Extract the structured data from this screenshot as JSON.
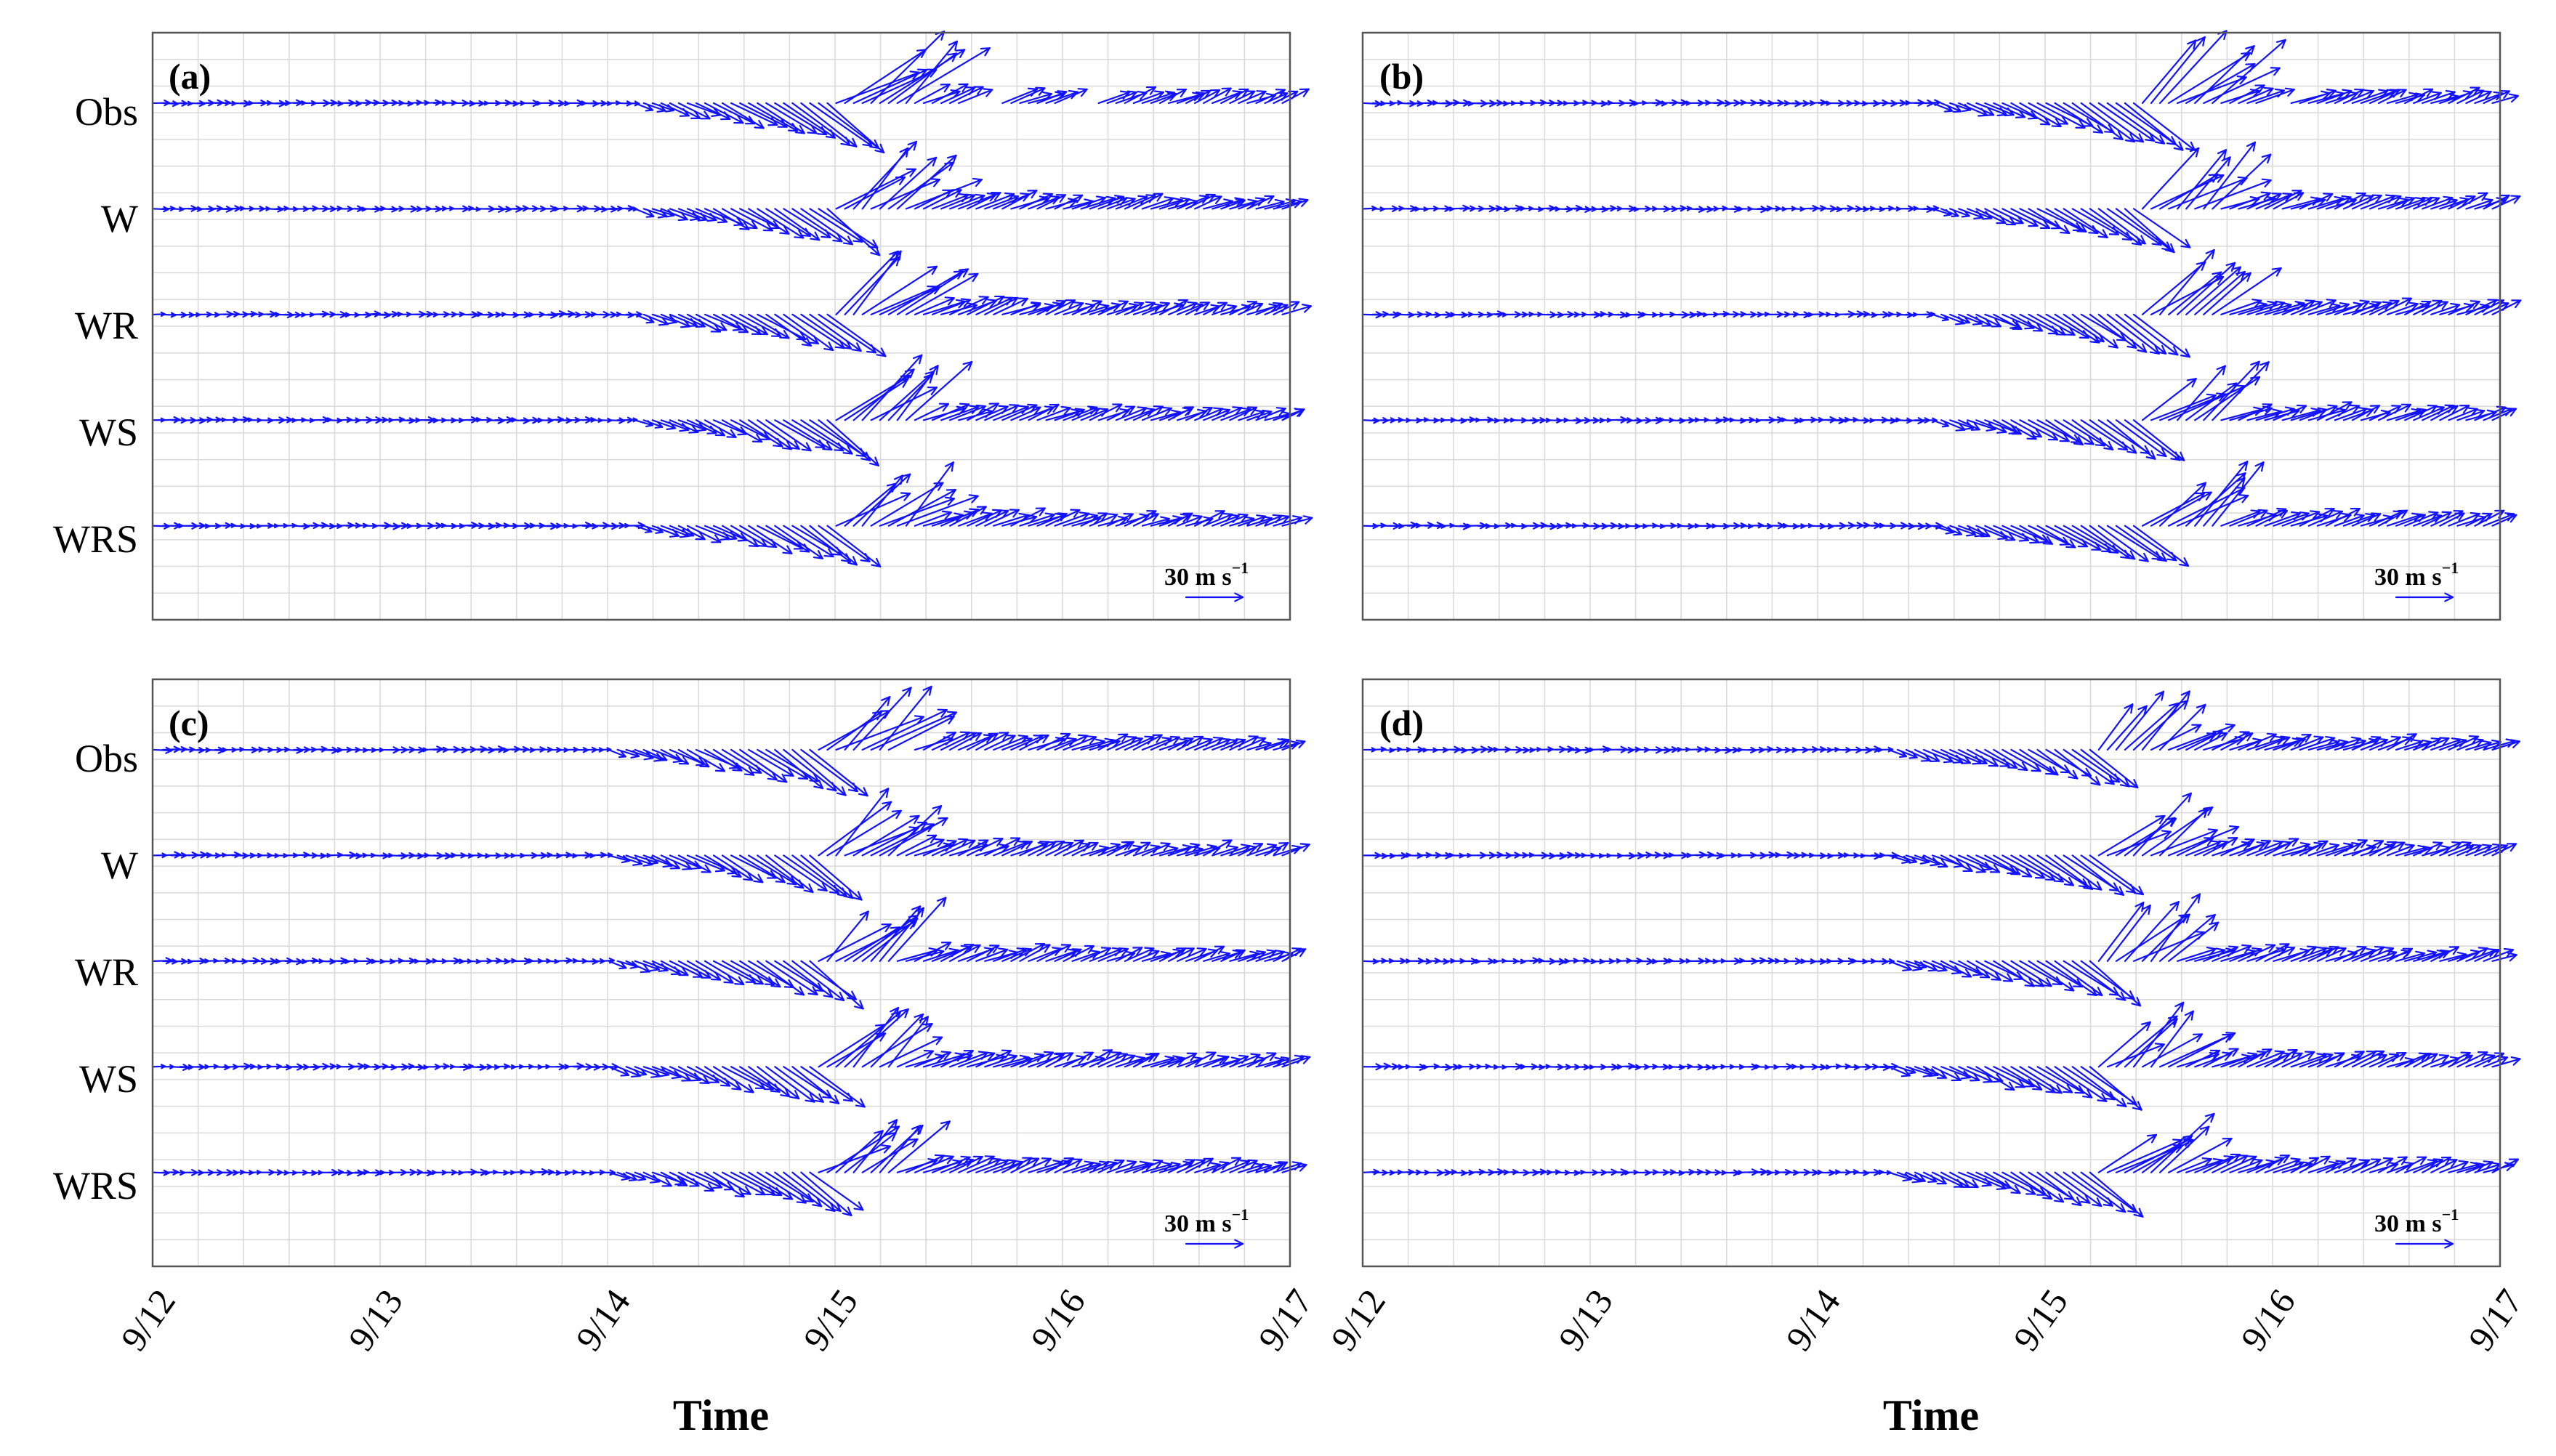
{
  "figure": {
    "xlabel": "Time",
    "vector_color": "#1212ff",
    "grid_color": "#d9d9d9"
  },
  "chart_data": [
    {
      "type": "quiver",
      "panel": "(a)",
      "x_ticks": [
        "9/12",
        "9/13",
        "9/14",
        "9/15",
        "9/16",
        "9/17"
      ],
      "xlim": [
        0,
        5
      ],
      "rows": [
        "Obs",
        "W",
        "WR",
        "WS",
        "WRS"
      ],
      "scale_label": "30 m s",
      "scale_superscript": "−1",
      "scale_speed": 30,
      "peak_time": 3.0,
      "series": [
        {
          "name": "Obs",
          "gaps": [
            [
              3.55,
              3.72
            ],
            [
              4.0,
              4.15
            ]
          ],
          "peak_speed": 42
        },
        {
          "name": "W",
          "gaps": [],
          "peak_speed": 36
        },
        {
          "name": "WR",
          "gaps": [],
          "peak_speed": 35
        },
        {
          "name": "WS",
          "gaps": [],
          "peak_speed": 34
        },
        {
          "name": "WRS",
          "gaps": [],
          "peak_speed": 34
        }
      ]
    },
    {
      "type": "quiver",
      "panel": "(b)",
      "x_ticks": [
        "9/12",
        "9/13",
        "9/14",
        "9/15",
        "9/16",
        "9/17"
      ],
      "xlim": [
        0,
        5
      ],
      "rows": [
        "Obs",
        "W",
        "WR",
        "WS",
        "WRS"
      ],
      "scale_label": "30 m s",
      "scale_superscript": "−1",
      "scale_speed": 30,
      "peak_time": 3.4,
      "series": [
        {
          "name": "Obs",
          "gaps": [
            [
              3.95,
              4.05
            ]
          ],
          "peak_speed": 40
        },
        {
          "name": "W",
          "gaps": [],
          "peak_speed": 35
        },
        {
          "name": "WR",
          "gaps": [],
          "peak_speed": 34
        },
        {
          "name": "WS",
          "gaps": [],
          "peak_speed": 33
        },
        {
          "name": "WRS",
          "gaps": [],
          "peak_speed": 33
        }
      ]
    },
    {
      "type": "quiver",
      "panel": "(c)",
      "x_ticks": [
        "9/12",
        "9/13",
        "9/14",
        "9/15",
        "9/16",
        "9/17"
      ],
      "xlim": [
        0,
        5
      ],
      "rows": [
        "Obs",
        "W",
        "WR",
        "WS",
        "WRS"
      ],
      "scale_label": "30 m s",
      "scale_superscript": "−1",
      "scale_speed": 30,
      "peak_time": 2.9,
      "series": [
        {
          "name": "Obs",
          "gaps": [
            [
              3.25,
              3.35
            ]
          ],
          "peak_speed": 36
        },
        {
          "name": "W",
          "gaps": [],
          "peak_speed": 35
        },
        {
          "name": "WR",
          "gaps": [],
          "peak_speed": 34
        },
        {
          "name": "WS",
          "gaps": [],
          "peak_speed": 33
        },
        {
          "name": "WRS",
          "gaps": [],
          "peak_speed": 33
        }
      ]
    },
    {
      "type": "quiver",
      "panel": "(d)",
      "x_ticks": [
        "9/12",
        "9/13",
        "9/14",
        "9/15",
        "9/16",
        "9/17"
      ],
      "xlim": [
        0,
        5
      ],
      "rows": [
        "Obs",
        "W",
        "WR",
        "WS",
        "WRS"
      ],
      "scale_label": "30 m s",
      "scale_superscript": "−1",
      "scale_speed": 30,
      "peak_time": 3.2,
      "series": [
        {
          "name": "Obs",
          "gaps": [],
          "peak_speed": 30
        },
        {
          "name": "W",
          "gaps": [],
          "peak_speed": 34
        },
        {
          "name": "WR",
          "gaps": [],
          "peak_speed": 33
        },
        {
          "name": "WS",
          "gaps": [],
          "peak_speed": 33
        },
        {
          "name": "WRS",
          "gaps": [],
          "peak_speed": 33
        }
      ]
    }
  ]
}
